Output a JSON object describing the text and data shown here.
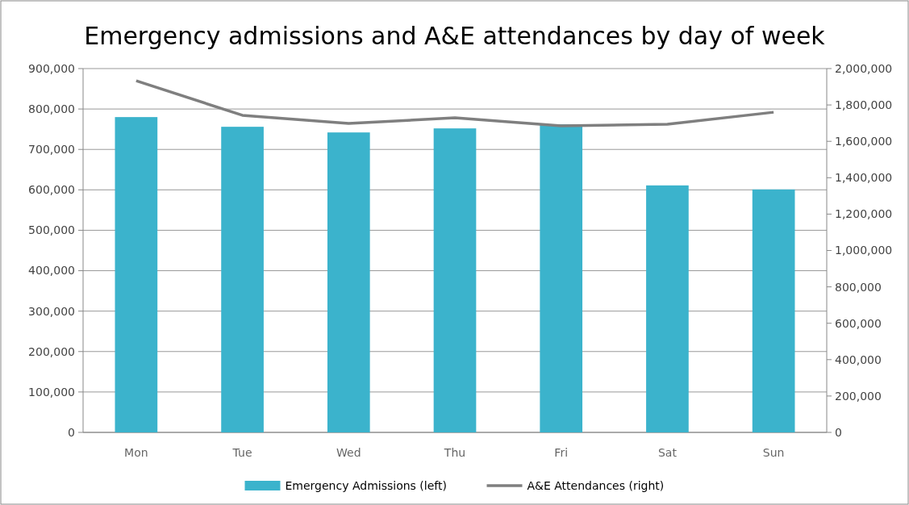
{
  "chart_data": {
    "type": "bar",
    "title": "Emergency admissions and A&E attendances by day of week",
    "categories": [
      "Mon",
      "Tue",
      "Wed",
      "Thu",
      "Fri",
      "Sat",
      "Sun"
    ],
    "series": [
      {
        "name": "Emergency Admissions (left)",
        "color": "#3bb3cc",
        "values": [
          780000,
          756000,
          742000,
          752000,
          762000,
          611000,
          601000
        ]
      },
      {
        "name": "A&E Attendances (right)",
        "type": "line",
        "axis": "y2",
        "color": "#7f7f7f",
        "values": [
          1933000,
          1743000,
          1698000,
          1729000,
          1685000,
          1694000,
          1760000
        ]
      }
    ],
    "ylim": [
      0,
      900000
    ],
    "yticks": [
      {
        "value": 0,
        "label": "0"
      },
      {
        "value": 100000,
        "label": "100,000"
      },
      {
        "value": 200000,
        "label": "200,000"
      },
      {
        "value": 300000,
        "label": "300,000"
      },
      {
        "value": 400000,
        "label": "400,000"
      },
      {
        "value": 500000,
        "label": "500,000"
      },
      {
        "value": 600000,
        "label": "600,000"
      },
      {
        "value": 700000,
        "label": "700,000"
      },
      {
        "value": 800000,
        "label": "800,000"
      },
      {
        "value": 900000,
        "label": "900,000"
      }
    ],
    "y2lim": [
      0,
      2000000
    ],
    "y2ticks": [
      {
        "value": 0,
        "label": "0"
      },
      {
        "value": 200000,
        "label": "200,000"
      },
      {
        "value": 400000,
        "label": "400,000"
      },
      {
        "value": 600000,
        "label": "600,000"
      },
      {
        "value": 800000,
        "label": "800,000"
      },
      {
        "value": 1000000,
        "label": "1,000,000"
      },
      {
        "value": 1200000,
        "label": "1,200,000"
      },
      {
        "value": 1400000,
        "label": "1,400,000"
      },
      {
        "value": 1600000,
        "label": "1,600,000"
      },
      {
        "value": 1800000,
        "label": "1,800,000"
      },
      {
        "value": 2000000,
        "label": "2,000,000"
      }
    ],
    "grid": "y",
    "legend": "bottom"
  }
}
